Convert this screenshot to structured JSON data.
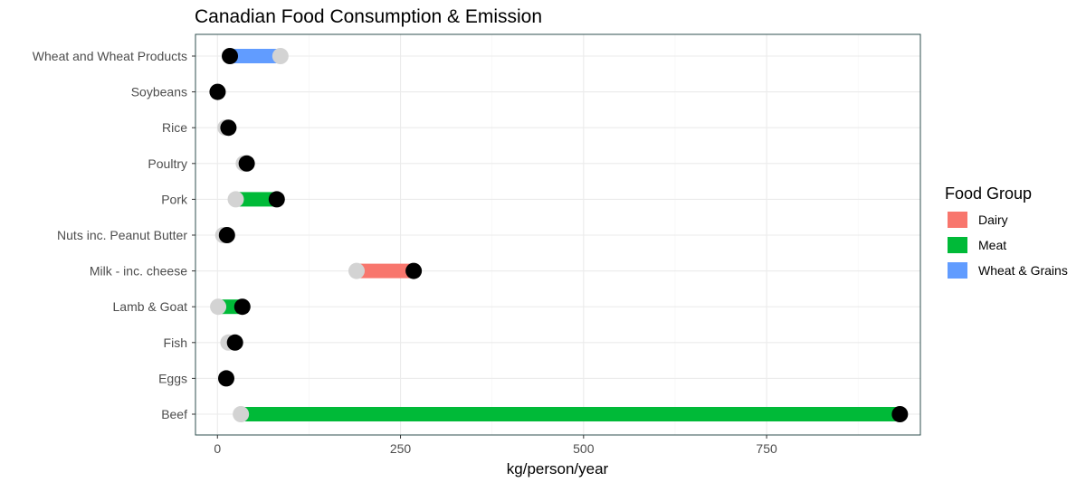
{
  "chart_data": {
    "type": "dumbbell",
    "title": "Canadian Food Consumption & Emission",
    "xlabel": "kg/person/year",
    "ylabel": "",
    "xlim": [
      -30,
      960
    ],
    "xticks": [
      0,
      250,
      500,
      750
    ],
    "grid": true,
    "legend": {
      "title": "Food Group",
      "placement": "right",
      "entries": [
        {
          "name": "Dairy",
          "color": "#f8766d"
        },
        {
          "name": "Meat",
          "color": "#00ba38"
        },
        {
          "name": "Wheat & Grains",
          "color": "#619cff"
        }
      ]
    },
    "point_colors": {
      "consumption": "#d3d3d3",
      "emission": "#000000"
    },
    "categories": [
      "Wheat and Wheat Products",
      "Soybeans",
      "Rice",
      "Poultry",
      "Pork",
      "Nuts inc. Peanut Butter",
      "Milk - inc. cheese",
      "Lamb & Goat",
      "Fish",
      "Eggs",
      "Beef"
    ],
    "rows": [
      {
        "food": "Wheat and Wheat Products",
        "group": "Wheat & Grains",
        "consumption": 86,
        "emission": 17
      },
      {
        "food": "Soybeans",
        "group": "Wheat & Grains",
        "consumption": 0.4,
        "emission": 0.2
      },
      {
        "food": "Rice",
        "group": "Wheat & Grains",
        "consumption": 11,
        "emission": 15
      },
      {
        "food": "Poultry",
        "group": "Meat",
        "consumption": 36,
        "emission": 40
      },
      {
        "food": "Pork",
        "group": "Meat",
        "consumption": 25,
        "emission": 81
      },
      {
        "food": "Nuts inc. Peanut Butter",
        "group": "Wheat & Grains",
        "consumption": 8,
        "emission": 13
      },
      {
        "food": "Milk - inc. cheese",
        "group": "Dairy",
        "consumption": 190,
        "emission": 268
      },
      {
        "food": "Lamb & Goat",
        "group": "Meat",
        "consumption": 1,
        "emission": 34
      },
      {
        "food": "Fish",
        "group": "Meat",
        "consumption": 15,
        "emission": 24
      },
      {
        "food": "Eggs",
        "group": "Meat",
        "consumption": 12,
        "emission": 12
      },
      {
        "food": "Beef",
        "group": "Meat",
        "consumption": 32,
        "emission": 932
      }
    ]
  }
}
